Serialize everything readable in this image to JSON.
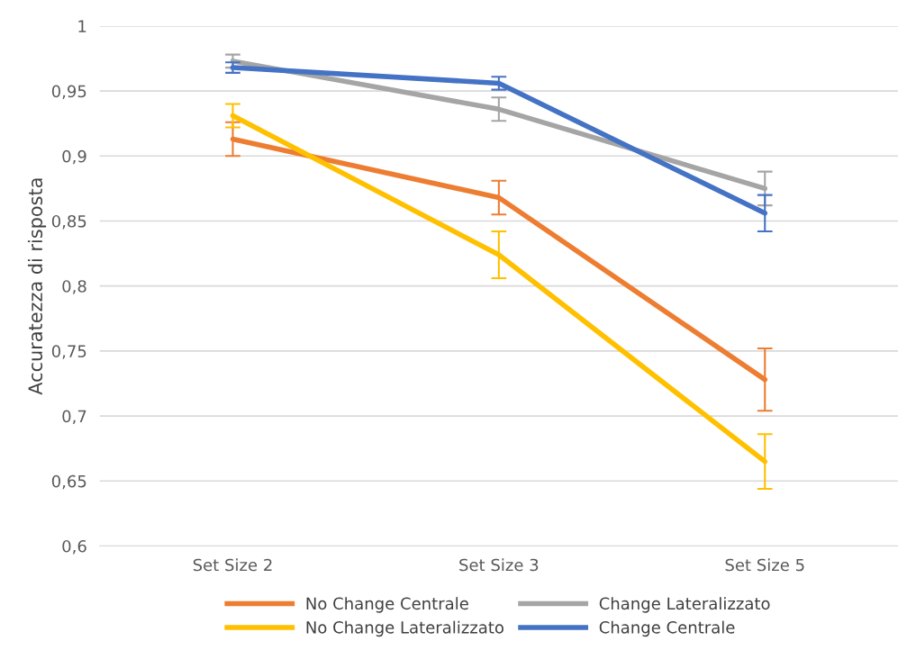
{
  "chart_data": {
    "type": "line",
    "ylabel": "Accuratezza di risposta",
    "categories": [
      "Set Size 2",
      "Set Size 3",
      "Set Size 5"
    ],
    "series": [
      {
        "name": "No Change Centrale",
        "color": "#ed7d31",
        "values": [
          0.913,
          0.868,
          0.728
        ],
        "errors": [
          0.013,
          0.013,
          0.024
        ]
      },
      {
        "name": "No Change Lateralizzato",
        "color": "#ffc000",
        "values": [
          0.931,
          0.824,
          0.665
        ],
        "errors": [
          0.009,
          0.018,
          0.021
        ]
      },
      {
        "name": "Change Lateralizzato",
        "color": "#a5a5a5",
        "values": [
          0.973,
          0.936,
          0.875
        ],
        "errors": [
          0.005,
          0.009,
          0.013
        ]
      },
      {
        "name": "Change Centrale",
        "color": "#4472c4",
        "values": [
          0.968,
          0.956,
          0.856
        ],
        "errors": [
          0.004,
          0.005,
          0.014
        ]
      }
    ],
    "ylim": [
      0.6,
      1
    ],
    "yticks": [
      {
        "value": 0.6,
        "label": "0,6"
      },
      {
        "value": 0.65,
        "label": "0,65"
      },
      {
        "value": 0.7,
        "label": "0,7"
      },
      {
        "value": 0.75,
        "label": "0,75"
      },
      {
        "value": 0.8,
        "label": "0,8"
      },
      {
        "value": 0.85,
        "label": "0,85"
      },
      {
        "value": 0.9,
        "label": "0,9"
      },
      {
        "value": 0.95,
        "label": "0,95"
      },
      {
        "value": 1,
        "label": "1"
      }
    ],
    "grid": "y",
    "legend": "bottom",
    "marker": "none",
    "line_style": "solid"
  }
}
